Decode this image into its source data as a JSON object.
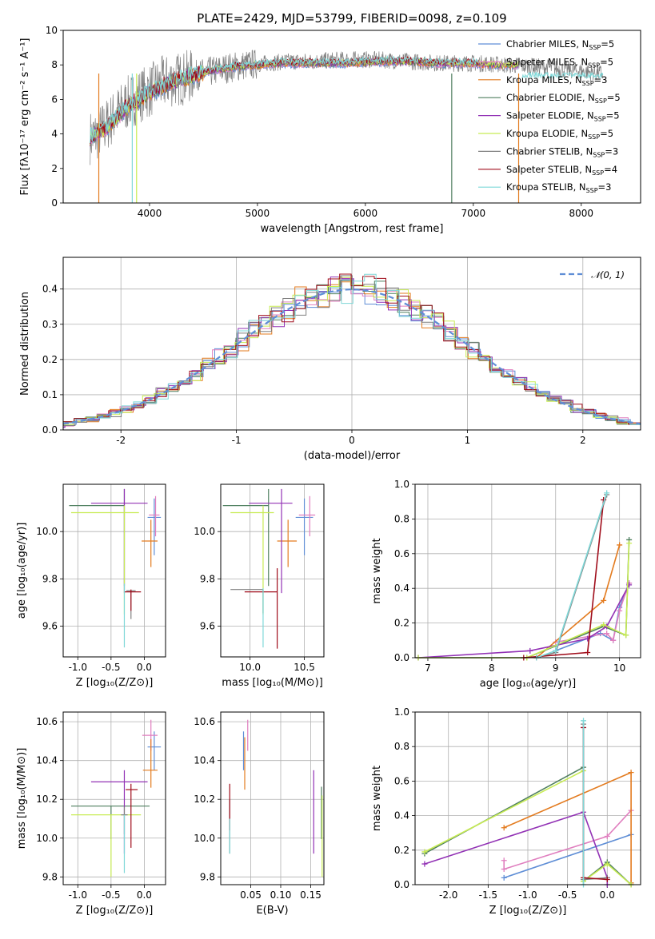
{
  "title": "PLATE=2429, MJD=53799, FIBERID=0098, z=0.109",
  "colors": {
    "Chabrier MILES": "#5f8ed6",
    "Salpeter MILES": "#e07fbf",
    "Kroupa MILES": "#e37b1f",
    "Chabrier ELODIE": "#4f7f5f",
    "Salpeter ELODIE": "#9232b5",
    "Kroupa ELODIE": "#c8ec54",
    "Chabrier STELIB": "#808080",
    "Salpeter STELIB": "#a00d1b",
    "Kroupa STELIB": "#7fd8d8",
    "normal": "#5f8ed6"
  },
  "legend_spectrum": [
    {
      "key": "Chabrier MILES",
      "pre": "Chabrier MILES, N",
      "sub": "SSP",
      "post": "=5"
    },
    {
      "key": "Salpeter MILES",
      "pre": "Salpeter MILES, N",
      "sub": "SSP",
      "post": "=5"
    },
    {
      "key": "Kroupa MILES",
      "pre": "Kroupa MILES, N",
      "sub": "SSP",
      "post": "=3"
    },
    {
      "key": "Chabrier ELODIE",
      "pre": "Chabrier ELODIE, N",
      "sub": "SSP",
      "post": "=5"
    },
    {
      "key": "Salpeter ELODIE",
      "pre": "Salpeter ELODIE, N",
      "sub": "SSP",
      "post": "=5"
    },
    {
      "key": "Kroupa ELODIE",
      "pre": "Kroupa ELODIE, N",
      "sub": "SSP",
      "post": "=5"
    },
    {
      "key": "Chabrier STELIB",
      "pre": "Chabrier STELIB, N",
      "sub": "SSP",
      "post": "=3"
    },
    {
      "key": "Salpeter STELIB",
      "pre": "Salpeter STELIB, N",
      "sub": "SSP",
      "post": "=4"
    },
    {
      "key": "Kroupa STELIB",
      "pre": "Kroupa STELIB, N",
      "sub": "SSP",
      "post": "=3"
    }
  ],
  "legend_hist": "𝒩(0, 1)",
  "chart_data": [
    {
      "id": "spectrum",
      "type": "line",
      "xlabel": "wavelength [Angstrom, rest frame]",
      "ylabel": "Flux [fλ10⁻¹⁷ erg cm⁻² s⁻¹ A⁻¹]",
      "xlim": [
        3200,
        8550
      ],
      "ylim": [
        0,
        10
      ],
      "xticks": [
        4000,
        5000,
        6000,
        7000,
        8000
      ],
      "yticks": [
        0,
        2,
        4,
        6,
        8,
        10
      ],
      "observed": {
        "x": [
          3450,
          3500,
          3600,
          3700,
          3800,
          3900,
          4000,
          4100,
          4200,
          4300,
          4500,
          4700,
          4900,
          5100,
          5300,
          5500,
          5800,
          6100,
          6400,
          6700,
          7000,
          7300,
          7600,
          7900,
          8200
        ],
        "y": [
          3.8,
          3.9,
          4.5,
          5.2,
          5.8,
          6.2,
          6.5,
          6.9,
          7.1,
          7.2,
          7.5,
          7.8,
          8.0,
          8.1,
          8.2,
          8.2,
          8.3,
          8.3,
          8.2,
          8.1,
          8.1,
          8.0,
          7.9,
          7.7,
          7.5
        ]
      },
      "model": {
        "x": [
          3450,
          3600,
          3800,
          4000,
          4200,
          4400,
          4600,
          4800,
          5000,
          5200,
          5500,
          5800,
          6100,
          6400,
          6700,
          7000,
          7300
        ],
        "y": [
          3.8,
          4.4,
          5.6,
          6.4,
          7.0,
          7.4,
          7.7,
          7.9,
          8.0,
          8.1,
          8.1,
          8.1,
          8.2,
          8.2,
          8.1,
          8.1,
          8.0
        ]
      }
    },
    {
      "id": "residuals",
      "type": "histogram",
      "xlabel": "(data-model)/error",
      "ylabel": "Normed distribution",
      "xlim": [
        -2.5,
        2.5
      ],
      "ylim": [
        0,
        0.49
      ],
      "xticks": [
        -2,
        -1,
        0,
        1,
        2
      ],
      "yticks": [
        0.0,
        0.1,
        0.2,
        0.3,
        0.4
      ],
      "bin_width": 0.1,
      "series": [
        {
          "key": "Chabrier MILES",
          "shift": 0.012
        },
        {
          "key": "Salpeter MILES",
          "shift": -0.008
        },
        {
          "key": "Kroupa MILES",
          "shift": 0.006
        },
        {
          "key": "Chabrier ELODIE",
          "shift": -0.004
        },
        {
          "key": "Salpeter ELODIE",
          "shift": 0.015
        },
        {
          "key": "Kroupa ELODIE",
          "shift": -0.012
        },
        {
          "key": "Chabrier STELIB",
          "shift": 0.003
        },
        {
          "key": "Salpeter STELIB",
          "shift": -0.006
        },
        {
          "key": "Kroupa STELIB",
          "shift": 0.009
        }
      ]
    },
    {
      "id": "age_vs_Z",
      "type": "errorbar",
      "xlabel": "Z [log₁₀(Z/Z⊙)]",
      "ylabel": "age  [log₁₀(age/yr)]",
      "xlim": [
        -1.22,
        0.32
      ],
      "ylim": [
        9.47,
        10.2
      ],
      "xticks": [
        -1.0,
        -0.5,
        0.0
      ],
      "yticks": [
        9.6,
        9.8,
        10.0
      ],
      "points": [
        {
          "key": "Chabrier MILES",
          "x": 0.15,
          "xe": [
            0.1,
            0.1
          ],
          "y": 10.06,
          "ye": [
            0.16,
            0.08
          ]
        },
        {
          "key": "Salpeter MILES",
          "x": 0.17,
          "xe": [
            0.1,
            0.06
          ],
          "y": 10.07,
          "ye": [
            0.09,
            0.08
          ]
        },
        {
          "key": "Kroupa MILES",
          "x": 0.1,
          "xe": [
            0.14,
            0.1
          ],
          "y": 9.96,
          "ye": [
            0.11,
            0.09
          ]
        },
        {
          "key": "Chabrier ELODIE",
          "x": -0.3,
          "xe": [
            0.83,
            0.0
          ],
          "y": 10.11,
          "ye": [
            0.34,
            0.07
          ]
        },
        {
          "key": "Salpeter ELODIE",
          "x": -0.3,
          "xe": [
            0.5,
            0.35
          ],
          "y": 10.12,
          "ye": [
            0.38,
            0.06
          ]
        },
        {
          "key": "Kroupa ELODIE",
          "x": -0.3,
          "xe": [
            0.8,
            0.22
          ],
          "y": 10.08,
          "ye": [
            0.43,
            0.03
          ]
        },
        {
          "key": "Chabrier STELIB",
          "x": -0.2,
          "xe": [
            0.07,
            0.07
          ],
          "y": 9.75,
          "ye": [
            0.12,
            0.0
          ]
        },
        {
          "key": "Salpeter STELIB",
          "x": -0.2,
          "xe": [
            0.1,
            0.15
          ],
          "y": 9.745,
          "ye": [
            0.08,
            0.01
          ]
        },
        {
          "key": "Kroupa STELIB",
          "x": -0.3,
          "xe": [
            0.0,
            0.0
          ],
          "y": 9.7,
          "ye": [
            0.19,
            0.08
          ]
        }
      ]
    },
    {
      "id": "age_vs_mass",
      "type": "errorbar",
      "xlabel": "mass [log₁₀(M/M⊙)]",
      "ylabel": "",
      "xlim": [
        9.73,
        10.68
      ],
      "ylim": [
        9.47,
        10.2
      ],
      "xticks": [
        10.0,
        10.5
      ],
      "yticks": [
        9.6,
        9.8,
        10.0
      ],
      "points": [
        {
          "key": "Chabrier MILES",
          "x": 10.5,
          "xe": [
            0.08,
            0.08
          ],
          "y": 10.06,
          "ye": [
            0.16,
            0.08
          ]
        },
        {
          "key": "Salpeter MILES",
          "x": 10.55,
          "xe": [
            0.1,
            0.05
          ],
          "y": 10.07,
          "ye": [
            0.09,
            0.08
          ]
        },
        {
          "key": "Kroupa MILES",
          "x": 10.35,
          "xe": [
            0.1,
            0.08
          ],
          "y": 9.96,
          "ye": [
            0.11,
            0.09
          ]
        },
        {
          "key": "Chabrier ELODIE",
          "x": 10.17,
          "xe": [
            0.42,
            0.0
          ],
          "y": 10.11,
          "ye": [
            0.34,
            0.07
          ]
        },
        {
          "key": "Salpeter ELODIE",
          "x": 10.29,
          "xe": [
            0.3,
            0.1
          ],
          "y": 10.12,
          "ye": [
            0.38,
            0.06
          ]
        },
        {
          "key": "Kroupa ELODIE",
          "x": 10.12,
          "xe": [
            0.3,
            0.1
          ],
          "y": 10.08,
          "ye": [
            0.43,
            0.03
          ]
        },
        {
          "key": "Chabrier STELIB",
          "x": 10.12,
          "xe": [
            0.3,
            0.0
          ],
          "y": 9.755,
          "ye": [
            0.1,
            0.0
          ]
        },
        {
          "key": "Salpeter STELIB",
          "x": 10.25,
          "xe": [
            0.3,
            0.0
          ],
          "y": 9.745,
          "ye": [
            0.24,
            0.1
          ]
        },
        {
          "key": "Kroupa STELIB",
          "x": 10.12,
          "xe": [
            0.0,
            0.0
          ],
          "y": 9.7,
          "ye": [
            0.19,
            0.06
          ]
        }
      ]
    },
    {
      "id": "massweight_vs_age",
      "type": "line",
      "xlabel": "age  [log₁₀(age/yr)]",
      "ylabel": "mass weight",
      "xlim": [
        6.8,
        10.33
      ],
      "ylim": [
        0,
        1.0
      ],
      "xticks": [
        7,
        8,
        9,
        10
      ],
      "yticks": [
        0.0,
        0.2,
        0.4,
        0.6,
        0.8,
        1.0
      ],
      "series": [
        {
          "key": "Chabrier MILES",
          "x": [
            9.0,
            9.7,
            9.9,
            10.0,
            10.15
          ],
          "y": [
            0.04,
            0.14,
            0.1,
            0.29,
            0.43
          ]
        },
        {
          "key": "Salpeter MILES",
          "x": [
            9.0,
            9.8,
            9.9,
            10.0,
            10.15
          ],
          "y": [
            0.09,
            0.14,
            0.1,
            0.27,
            0.43
          ]
        },
        {
          "key": "Kroupa MILES",
          "x": [
            8.7,
            9.75,
            10.0
          ],
          "y": [
            0.0,
            0.33,
            0.65
          ]
        },
        {
          "key": "Chabrier ELODIE",
          "x": [
            6.85,
            8.55,
            9.75,
            10.1,
            10.15
          ],
          "y": [
            0.0,
            0.0,
            0.18,
            0.13,
            0.68
          ]
        },
        {
          "key": "Salpeter ELODIE",
          "x": [
            6.85,
            8.6,
            9.5,
            9.8,
            10.15
          ],
          "y": [
            0.0,
            0.04,
            0.11,
            0.18,
            0.42
          ]
        },
        {
          "key": "Kroupa ELODIE",
          "x": [
            6.85,
            8.55,
            9.75,
            10.1,
            10.15
          ],
          "y": [
            0.0,
            0.0,
            0.19,
            0.13,
            0.66
          ]
        },
        {
          "key": "Chabrier STELIB",
          "x": [
            8.7,
            9.0,
            9.8
          ],
          "y": [
            0.0,
            0.03,
            0.94
          ]
        },
        {
          "key": "Salpeter STELIB",
          "x": [
            8.5,
            9.5,
            9.75
          ],
          "y": [
            0.0,
            0.03,
            0.91
          ]
        },
        {
          "key": "Kroupa STELIB",
          "x": [
            8.7,
            9.0,
            9.8
          ],
          "y": [
            0.0,
            0.04,
            0.95
          ]
        }
      ]
    },
    {
      "id": "mass_vs_Z",
      "type": "errorbar",
      "xlabel": "Z [log₁₀(Z/Z⊙)]",
      "ylabel": "mass [log₁₀(M/M⊙)]",
      "xlim": [
        -1.22,
        0.32
      ],
      "ylim": [
        9.76,
        10.65
      ],
      "xticks": [
        -1.0,
        -0.5,
        0.0
      ],
      "yticks": [
        9.8,
        10.0,
        10.2,
        10.4,
        10.6
      ],
      "points": [
        {
          "key": "Chabrier MILES",
          "x": 0.15,
          "xe": [
            0.1,
            0.1
          ],
          "y": 10.47,
          "ye": [
            0.12,
            0.08
          ]
        },
        {
          "key": "Salpeter MILES",
          "x": 0.1,
          "xe": [
            0.13,
            0.1
          ],
          "y": 10.53,
          "ye": [
            0.08,
            0.08
          ]
        },
        {
          "key": "Kroupa MILES",
          "x": 0.1,
          "xe": [
            0.12,
            0.1
          ],
          "y": 10.35,
          "ye": [
            0.09,
            0.16
          ]
        },
        {
          "key": "Chabrier ELODIE",
          "x": -0.5,
          "xe": [
            0.6,
            0.58
          ],
          "y": 10.165,
          "ye": [
            0.17,
            0.0
          ]
        },
        {
          "key": "Salpeter ELODIE",
          "x": -0.3,
          "xe": [
            0.5,
            0.35
          ],
          "y": 10.29,
          "ye": [
            0.37,
            0.06
          ]
        },
        {
          "key": "Kroupa ELODIE",
          "x": -0.5,
          "xe": [
            0.6,
            0.45
          ],
          "y": 10.12,
          "ye": [
            0.32,
            0.0
          ]
        },
        {
          "key": "Chabrier STELIB",
          "x": -0.3,
          "xe": [
            0.05,
            0.05
          ],
          "y": 10.12,
          "ye": [
            0.1,
            0.04
          ]
        },
        {
          "key": "Salpeter STELIB",
          "x": -0.2,
          "xe": [
            0.08,
            0.1
          ],
          "y": 10.25,
          "ye": [
            0.3,
            0.03
          ]
        },
        {
          "key": "Kroupa STELIB",
          "x": -0.3,
          "xe": [
            0.0,
            0.0
          ],
          "y": 10.12,
          "ye": [
            0.3,
            0.0
          ]
        }
      ]
    },
    {
      "id": "mass_vs_EBV",
      "type": "errorbar",
      "xlabel": "E(B-V)",
      "ylabel": "",
      "xlim": [
        0.0,
        0.172
      ],
      "ylim": [
        9.76,
        10.65
      ],
      "xticks": [
        0.05,
        0.1,
        0.15
      ],
      "yticks": [
        9.8,
        10.0,
        10.2,
        10.4,
        10.6
      ],
      "points": [
        {
          "key": "Chabrier MILES",
          "x": 0.038,
          "xe": [
            0.0,
            0.0
          ],
          "y": 10.47,
          "ye": [
            0.12,
            0.08
          ]
        },
        {
          "key": "Salpeter MILES",
          "x": 0.045,
          "xe": [
            0.0,
            0.0
          ],
          "y": 10.53,
          "ye": [
            0.08,
            0.08
          ]
        },
        {
          "key": "Kroupa MILES",
          "x": 0.04,
          "xe": [
            0.0,
            0.0
          ],
          "y": 10.4,
          "ye": [
            0.15,
            0.12
          ]
        },
        {
          "key": "Chabrier ELODIE",
          "x": 0.168,
          "xe": [
            0.0,
            0.0
          ],
          "y": 10.165,
          "ye": [
            0.17,
            0.1
          ]
        },
        {
          "key": "Salpeter ELODIE",
          "x": 0.155,
          "xe": [
            0.0,
            0.0
          ],
          "y": 10.15,
          "ye": [
            0.23,
            0.2
          ]
        },
        {
          "key": "Kroupa ELODIE",
          "x": 0.169,
          "xe": [
            0.0,
            0.0
          ],
          "y": 10.0,
          "ye": [
            0.2,
            0.22
          ]
        },
        {
          "key": "Chabrier STELIB",
          "x": 0.015,
          "xe": [
            0.0,
            0.0
          ],
          "y": 10.12,
          "ye": [
            0.2,
            0.08
          ]
        },
        {
          "key": "Salpeter STELIB",
          "x": 0.015,
          "xe": [
            0.0,
            0.0
          ],
          "y": 10.2,
          "ye": [
            0.16,
            0.08
          ]
        },
        {
          "key": "Kroupa STELIB",
          "x": 0.015,
          "xe": [
            0.0,
            0.0
          ],
          "y": 10.0,
          "ye": [
            0.08,
            0.1
          ]
        }
      ]
    },
    {
      "id": "massweight_vs_Z",
      "type": "line",
      "xlabel": "Z [log₁₀(Z/Z⊙)]",
      "ylabel": "mass weight",
      "xlim": [
        -2.42,
        0.42
      ],
      "ylim": [
        0,
        1.0
      ],
      "xticks": [
        -2.0,
        -1.5,
        -1.0,
        -0.5,
        0.0
      ],
      "yticks": [
        0.0,
        0.2,
        0.4,
        0.6,
        0.8,
        1.0
      ],
      "series": [
        {
          "key": "Chabrier MILES",
          "x": [
            -1.3,
            0.3
          ],
          "y": [
            0.04,
            0.29
          ]
        },
        {
          "key": "Salpeter MILES",
          "x": [
            -1.3,
            -1.3,
            0.0,
            0.3
          ],
          "y": [
            0.14,
            0.09,
            0.28,
            0.43
          ]
        },
        {
          "key": "Kroupa MILES",
          "x": [
            -1.3,
            0.3,
            0.3
          ],
          "y": [
            0.33,
            0.65,
            0.01
          ]
        },
        {
          "key": "Chabrier ELODIE",
          "x": [
            -2.3,
            -0.3,
            -0.3,
            0.0,
            0.3
          ],
          "y": [
            0.18,
            0.68,
            0.02,
            0.13,
            0.0
          ]
        },
        {
          "key": "Salpeter ELODIE",
          "x": [
            -2.3,
            -0.3,
            0.0,
            0.0
          ],
          "y": [
            0.12,
            0.42,
            0.04,
            0.0
          ]
        },
        {
          "key": "Kroupa ELODIE",
          "x": [
            -2.3,
            -0.3,
            -0.3,
            0.0,
            0.3
          ],
          "y": [
            0.19,
            0.66,
            0.02,
            0.12,
            0.0
          ]
        },
        {
          "key": "Chabrier STELIB",
          "x": [
            -0.3,
            -0.3,
            0.0
          ],
          "y": [
            0.93,
            0.03,
            0.04
          ]
        },
        {
          "key": "Salpeter STELIB",
          "x": [
            -0.3,
            -0.3,
            0.0
          ],
          "y": [
            0.91,
            0.04,
            0.03
          ]
        },
        {
          "key": "Kroupa STELIB",
          "x": [
            -0.3,
            -0.3
          ],
          "y": [
            0.95,
            0.0
          ]
        }
      ]
    }
  ]
}
